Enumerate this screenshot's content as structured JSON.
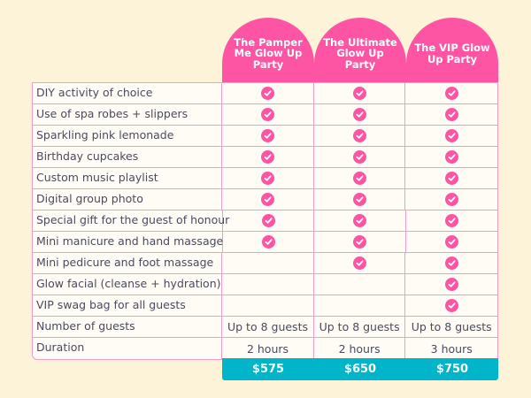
{
  "packages": [
    {
      "name": "The Pamper Me Glow Up Party",
      "price": "$575"
    },
    {
      "name": "The Ultimate Glow Up Party",
      "price": "$650"
    },
    {
      "name": "The VIP Glow Up Party",
      "price": "$750"
    }
  ],
  "rows": [
    {
      "label": "DIY activity of choice",
      "values": [
        true,
        true,
        true
      ]
    },
    {
      "label": "Use of spa robes + slippers",
      "values": [
        true,
        true,
        true
      ]
    },
    {
      "label": "Sparkling pink lemonade",
      "values": [
        true,
        true,
        true
      ]
    },
    {
      "label": "Birthday cupcakes",
      "values": [
        true,
        true,
        true
      ]
    },
    {
      "label": "Custom music playlist",
      "values": [
        true,
        true,
        true
      ]
    },
    {
      "label": "Digital group photo",
      "values": [
        true,
        true,
        true
      ]
    },
    {
      "label": "Special gift for the guest of honour",
      "values": [
        true,
        true,
        true
      ]
    },
    {
      "label": "Mini manicure and hand massage",
      "values": [
        true,
        true,
        true
      ]
    },
    {
      "label": "Mini pedicure and foot massage",
      "values": [
        false,
        true,
        true
      ]
    },
    {
      "label": "Glow facial (cleanse + hydration)",
      "values": [
        false,
        false,
        true
      ]
    },
    {
      "label": "VIP swag bag for all guests",
      "values": [
        false,
        false,
        true
      ]
    },
    {
      "label": "Number of guests",
      "values": [
        "Up to 8 guests",
        "Up to 8 guests",
        "Up to 8 guests"
      ]
    },
    {
      "label": "Duration",
      "values": [
        "2 hours",
        "2 hours",
        "3 hours"
      ]
    }
  ],
  "colors": {
    "accent": "#fd54a3",
    "price_bar": "#00b5c9",
    "background": "#fdf3d8"
  },
  "check_icon": "check-circle-icon"
}
